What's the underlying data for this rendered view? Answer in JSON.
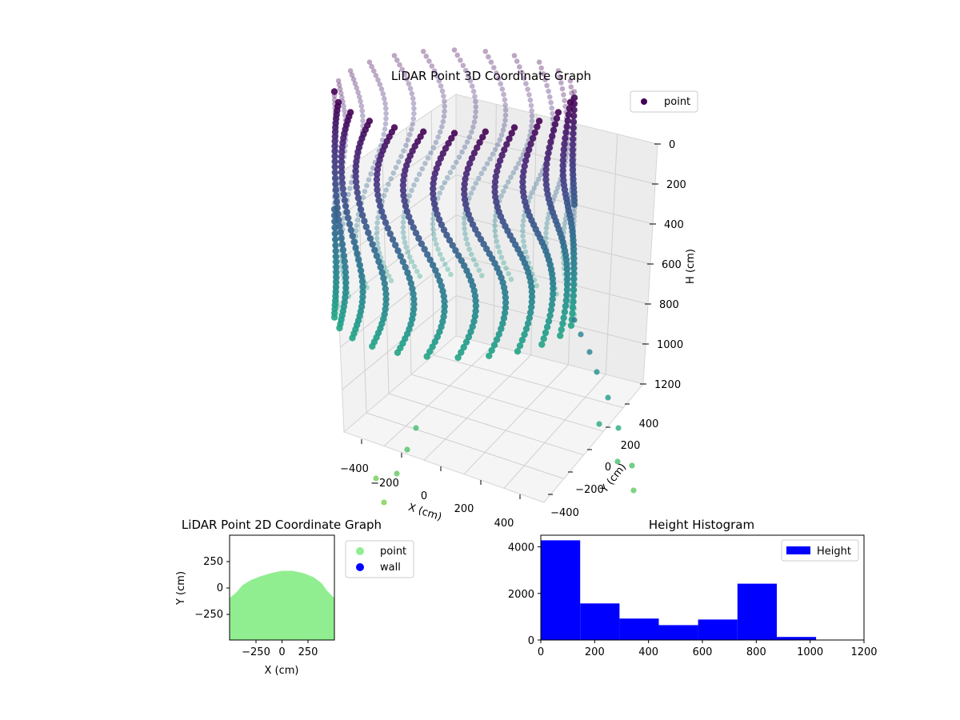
{
  "chart_data": [
    {
      "type": "scatter",
      "projection": "3d",
      "title": "LiDAR Point 3D Coordinate Graph",
      "xlabel": "X (cm)",
      "ylabel": "Y (cm)",
      "zlabel": "H (cm)",
      "xticks": [
        "−400",
        "−200",
        "0",
        "200",
        "400"
      ],
      "yticks": [
        "−400",
        "−200",
        "0",
        "200",
        "400"
      ],
      "zticks": [
        "0",
        "200",
        "400",
        "600",
        "800",
        "1000",
        "1200"
      ],
      "zlim": [
        0,
        1200
      ],
      "z_inverted": true,
      "grid": true,
      "colormap": "viridis",
      "legend": {
        "position": "top-right",
        "entries": [
          {
            "name": "point",
            "color": "#440154"
          }
        ]
      },
      "structure": {
        "radius_cm": 450,
        "height_range_cm": [
          0,
          1100
        ],
        "scan_lines": 24
      }
    },
    {
      "type": "scatter",
      "title": "LiDAR Point 2D Coordinate Graph",
      "xlabel": "X (cm)",
      "ylabel": "Y (cm)",
      "xticks": [
        "−250",
        "0",
        "250"
      ],
      "yticks": [
        "250",
        "0",
        "−250"
      ],
      "xlim": [
        -500,
        500
      ],
      "ylim": [
        -500,
        500
      ],
      "series": [
        {
          "name": "point",
          "color": "#90ee90",
          "outline": [
            [
              -500,
              -500
            ],
            [
              -500,
              -100
            ],
            [
              -430,
              -40
            ],
            [
              -380,
              20
            ],
            [
              -300,
              70
            ],
            [
              -200,
              110
            ],
            [
              -100,
              140
            ],
            [
              0,
              160
            ],
            [
              100,
              160
            ],
            [
              200,
              140
            ],
            [
              300,
              100
            ],
            [
              380,
              40
            ],
            [
              430,
              -30
            ],
            [
              500,
              -100
            ],
            [
              500,
              -500
            ]
          ]
        },
        {
          "name": "wall",
          "color": "#0000ff",
          "points": []
        }
      ],
      "legend": {
        "position": "outside-right",
        "entries": [
          {
            "name": "point",
            "color": "#90ee90"
          },
          {
            "name": "wall",
            "color": "#0000ff"
          }
        ]
      }
    },
    {
      "type": "bar",
      "title": "Height Histogram",
      "series_name": "Height",
      "color": "#0000ff",
      "bin_edges": [
        0,
        146,
        292,
        438,
        584,
        730,
        876,
        1022
      ],
      "values": [
        4280,
        1570,
        920,
        640,
        880,
        2420,
        130
      ],
      "xlim": [
        0,
        1200
      ],
      "ylim": [
        0,
        4500
      ],
      "xticks": [
        "0",
        "200",
        "400",
        "600",
        "800",
        "1000",
        "1200"
      ],
      "yticks": [
        "0",
        "2000",
        "4000"
      ],
      "legend": {
        "position": "top-right",
        "entries": [
          {
            "name": "Height",
            "color": "#0000ff"
          }
        ]
      }
    }
  ]
}
